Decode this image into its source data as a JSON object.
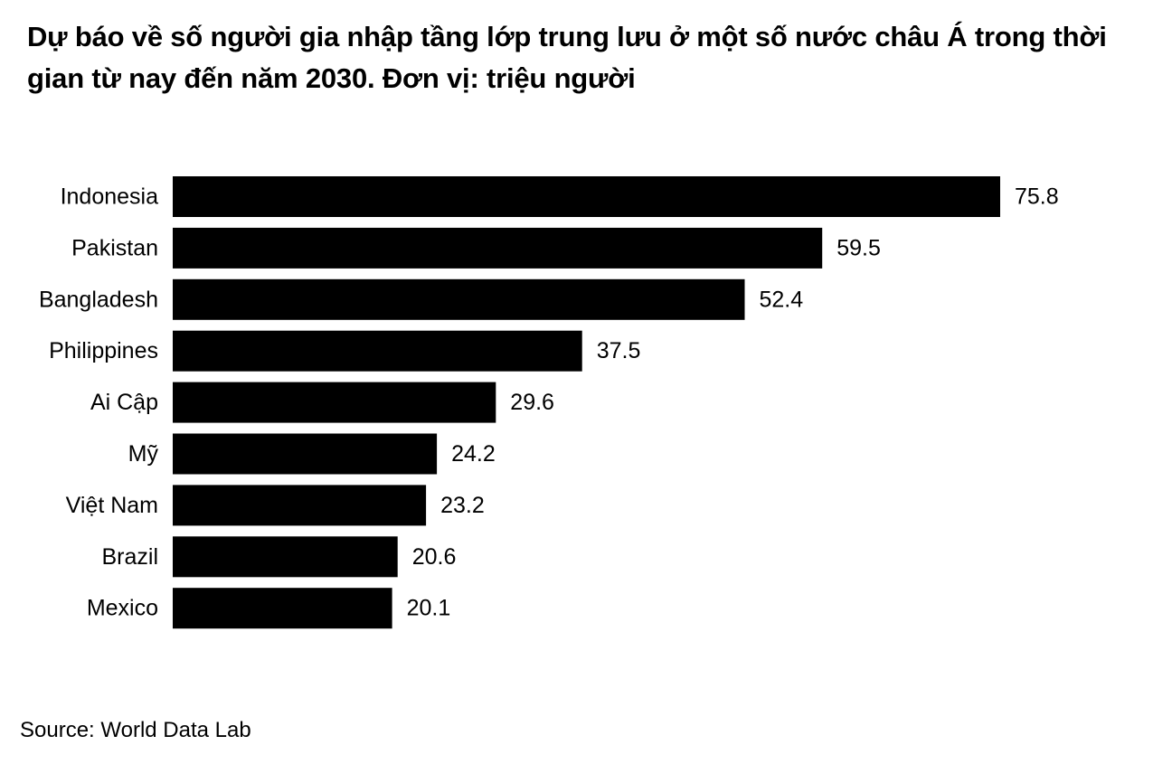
{
  "chart_data": {
    "type": "bar",
    "orientation": "horizontal",
    "title": "Dự báo về số người gia nhập tầng lớp trung lưu ở một số nước châu Á trong thời gian từ nay đến năm 2030. Đơn vị: triệu người",
    "categories": [
      "Indonesia",
      "Pakistan",
      "Bangladesh",
      "Philippines",
      "Ai Cập",
      "Mỹ",
      "Việt Nam",
      "Brazil",
      "Mexico"
    ],
    "values": [
      75.8,
      59.5,
      52.4,
      37.5,
      29.6,
      24.2,
      23.2,
      20.6,
      20.1
    ],
    "value_labels": [
      "75.8",
      "59.5",
      "52.4",
      "37.5",
      "29.6",
      "24.2",
      "23.2",
      "20.6",
      "20.1"
    ],
    "xlim": [
      0,
      75.8
    ],
    "grid": false,
    "legend": "none",
    "bar_color": "#000000"
  },
  "source": "Source: World Data Lab"
}
